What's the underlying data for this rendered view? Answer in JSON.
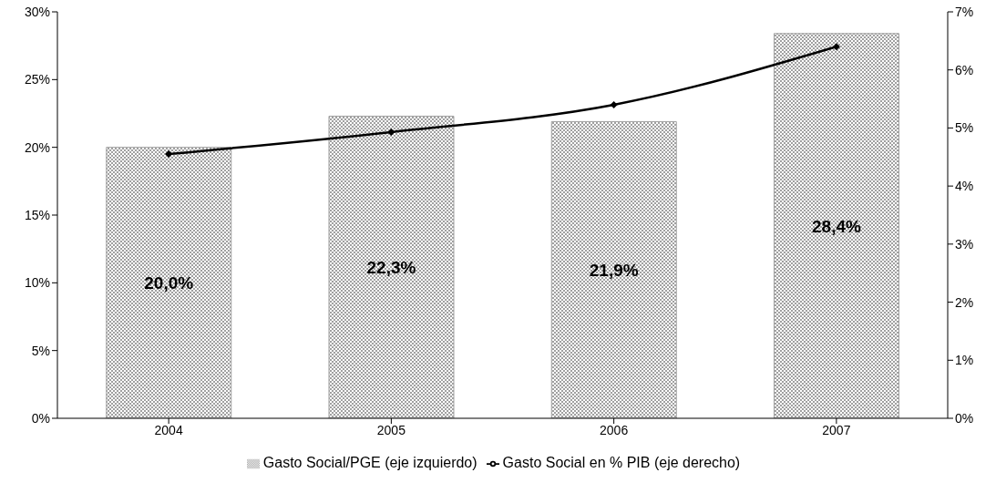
{
  "chart_data": {
    "type": "bar",
    "categories": [
      "2004",
      "2005",
      "2006",
      "2007"
    ],
    "series": [
      {
        "name": "Gasto Social/PGE (eje izquierdo)",
        "color": "#a0a0a0",
        "values": [
          20.0,
          22.3,
          21.9,
          28.4
        ],
        "value_labels": [
          "20,0%",
          "22,3%",
          "21,9%",
          "28,4%"
        ]
      },
      {
        "name": "Gasto Social en % PIB (eje derecho)",
        "type": "line",
        "axis": "y2",
        "color": "#000000",
        "values": [
          4.55,
          4.93,
          5.4,
          6.4
        ]
      }
    ],
    "ylim": [
      0,
      30
    ],
    "yticks": [
      {
        "value": 0,
        "label": "0%"
      },
      {
        "value": 5,
        "label": "5%"
      },
      {
        "value": 10,
        "label": "10%"
      },
      {
        "value": 15,
        "label": "15%"
      },
      {
        "value": 20,
        "label": "20%"
      },
      {
        "value": 25,
        "label": "25%"
      },
      {
        "value": 30,
        "label": "30%"
      }
    ],
    "y2lim": [
      0,
      7
    ],
    "y2ticks": [
      {
        "value": 0,
        "label": "0%"
      },
      {
        "value": 1,
        "label": "1%"
      },
      {
        "value": 2,
        "label": "2%"
      },
      {
        "value": 3,
        "label": "3%"
      },
      {
        "value": 4,
        "label": "4%"
      },
      {
        "value": 5,
        "label": "5%"
      },
      {
        "value": 6,
        "label": "6%"
      },
      {
        "value": 7,
        "label": "7%"
      }
    ],
    "grid": false,
    "legend": "bottom",
    "marker": "diamond",
    "line_style": "solid"
  }
}
